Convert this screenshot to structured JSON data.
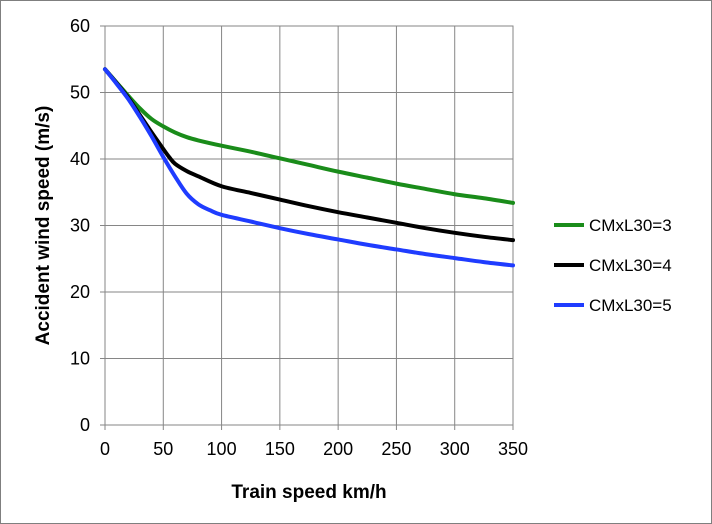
{
  "chart_data": {
    "type": "line",
    "title": "",
    "xlabel": "Train speed km/h",
    "ylabel": "Accident wind speed (m/s)",
    "xlim": [
      0,
      350
    ],
    "ylim": [
      0,
      60
    ],
    "xticks": [
      0,
      50,
      100,
      150,
      200,
      250,
      300,
      350
    ],
    "yticks": [
      0,
      10,
      20,
      30,
      40,
      50,
      60
    ],
    "grid": true,
    "legend_position": "right",
    "series": [
      {
        "name": "CMxL30=3",
        "color": "#1a8c1a",
        "x": [
          0,
          10,
          20,
          30,
          40,
          50,
          60,
          70,
          80,
          100,
          125,
          150,
          175,
          200,
          225,
          250,
          275,
          300,
          325,
          350
        ],
        "y": [
          53.5,
          51.5,
          49.5,
          47.6,
          46.0,
          44.9,
          44.0,
          43.3,
          42.8,
          42.0,
          41.1,
          40.1,
          39.1,
          38.1,
          37.2,
          36.3,
          35.5,
          34.7,
          34.1,
          33.4
        ]
      },
      {
        "name": "CMxL30=4",
        "color": "#000000",
        "x": [
          0,
          10,
          20,
          30,
          40,
          50,
          55,
          60,
          70,
          80,
          100,
          125,
          150,
          175,
          200,
          225,
          250,
          275,
          300,
          325,
          350
        ],
        "y": [
          53.5,
          51.4,
          49.2,
          46.6,
          44.0,
          41.5,
          40.3,
          39.3,
          38.2,
          37.4,
          35.9,
          34.9,
          33.9,
          32.9,
          32.0,
          31.2,
          30.4,
          29.6,
          28.9,
          28.3,
          27.8
        ]
      },
      {
        "name": "CMxL30=5",
        "color": "#1f3cff",
        "x": [
          0,
          10,
          20,
          30,
          40,
          50,
          60,
          70,
          80,
          90,
          100,
          125,
          150,
          175,
          200,
          225,
          250,
          275,
          300,
          325,
          350
        ],
        "y": [
          53.5,
          51.3,
          49.0,
          46.3,
          43.4,
          40.3,
          37.4,
          34.8,
          33.2,
          32.3,
          31.6,
          30.6,
          29.6,
          28.7,
          27.9,
          27.1,
          26.4,
          25.7,
          25.1,
          24.5,
          24.0
        ]
      }
    ]
  }
}
